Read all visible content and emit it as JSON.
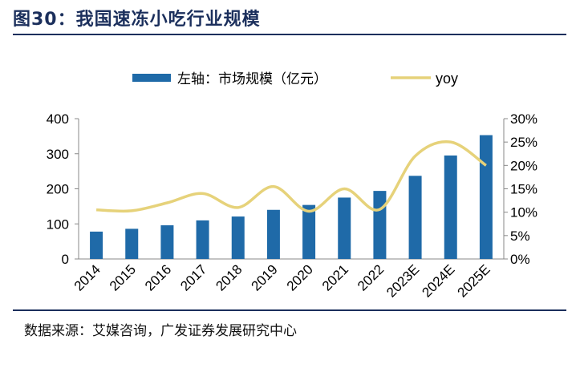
{
  "figure": {
    "title": "图30：我国速冻小吃行业规模",
    "source": "数据来源：艾媒咨询，广发证券发展研究中心"
  },
  "chart_data": {
    "type": "bar",
    "categories": [
      "2014",
      "2015",
      "2016",
      "2017",
      "2018",
      "2019",
      "2020",
      "2021",
      "2022",
      "2023E",
      "2024E",
      "2025E"
    ],
    "series": [
      {
        "name": "左轴：市场规模（亿元）",
        "type": "bar",
        "axis": "left",
        "color": "#1f6aa8",
        "values": [
          78,
          86,
          96,
          110,
          121,
          140,
          154,
          175,
          194,
          237,
          295,
          353
        ]
      },
      {
        "name": "yoy",
        "type": "line",
        "axis": "right",
        "color": "#e6d27a",
        "values": [
          10.5,
          10.3,
          12.0,
          14.0,
          11.0,
          15.5,
          10.2,
          15.0,
          10.6,
          22.0,
          25.0,
          20.0
        ]
      }
    ],
    "ylim": [
      0,
      400
    ],
    "yticks": [
      "0",
      "100",
      "200",
      "300",
      "400"
    ],
    "y2lim": [
      0,
      30
    ],
    "y2ticks": [
      "0%",
      "5%",
      "10%",
      "15%",
      "20%",
      "25%",
      "30%"
    ],
    "legend_position": "top",
    "grid": false
  }
}
